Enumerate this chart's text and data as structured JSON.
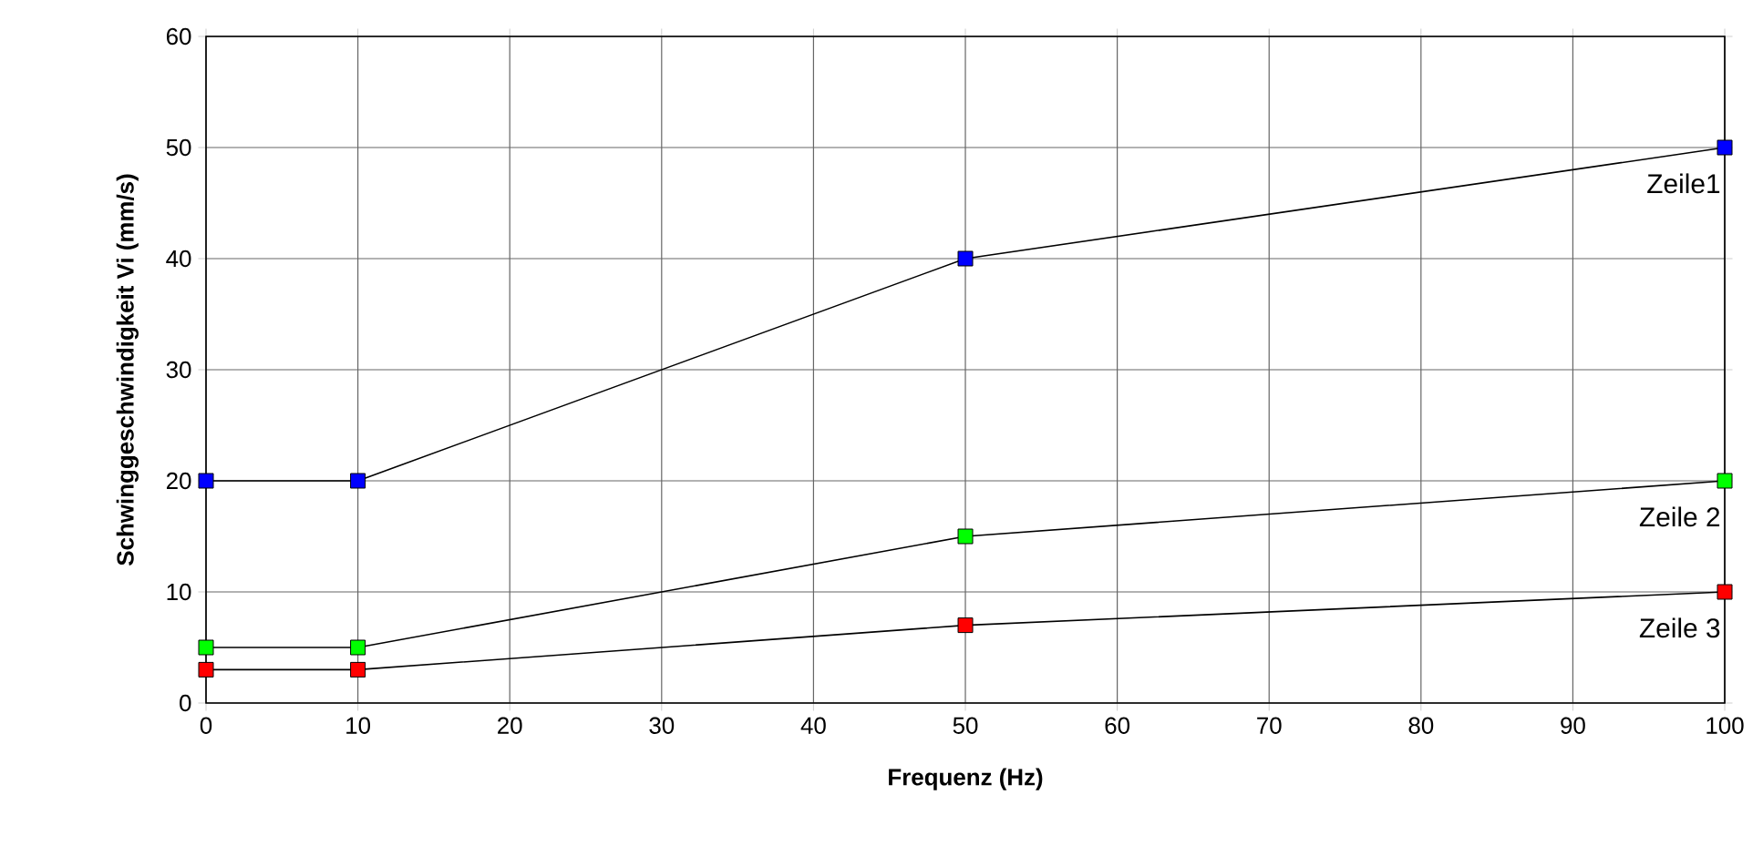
{
  "chart_data": {
    "type": "line",
    "xlabel": "Frequenz (Hz)",
    "ylabel": "Schwinggeschwindigkeit Vi (mm/s)",
    "x": [
      0,
      10,
      50,
      100
    ],
    "series": [
      {
        "name": "Zeile1",
        "color": "#0000ff",
        "values": [
          20,
          20,
          40,
          50
        ]
      },
      {
        "name": "Zeile 2",
        "color": "#00ff00",
        "values": [
          5,
          5,
          15,
          20
        ]
      },
      {
        "name": "Zeile 3",
        "color": "#ff0000",
        "values": [
          3,
          3,
          7,
          10
        ]
      }
    ],
    "xlim": [
      0,
      100
    ],
    "ylim": [
      0,
      60
    ],
    "xticks": [
      0,
      10,
      20,
      30,
      40,
      50,
      60,
      70,
      80,
      90,
      100
    ],
    "yticks": [
      0,
      10,
      20,
      30,
      40,
      50,
      60
    ],
    "grid": true,
    "marker": "square",
    "line_style": "solid"
  }
}
